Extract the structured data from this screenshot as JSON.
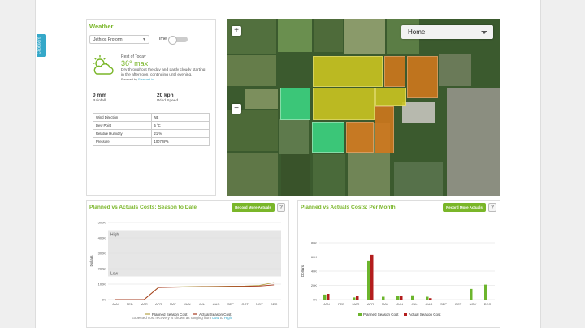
{
  "sidebar_tab": {
    "label": "Clipboard"
  },
  "weather": {
    "title": "Weather",
    "location_select": "Jethros Proform",
    "time_label": "Time",
    "period": "Rest of Today",
    "temperature": "36° max",
    "description_line1": "Dry throughout the day and partly cloudy starting",
    "description_line2": "in the afternoon, continuing until evening.",
    "powered_by_prefix": "Powered by",
    "powered_by_brand": "Forecast.io",
    "rainfall_value": "0 mm",
    "rainfall_label": "Rainfall",
    "wind_speed_value": "20 kph",
    "wind_speed_label": "Wind Speed",
    "details": [
      {
        "label": "Wind Direction",
        "value": "NE"
      },
      {
        "label": "Dew Point",
        "value": "5 °C"
      },
      {
        "label": "Relative Humidity",
        "value": "21 %"
      },
      {
        "label": "Pressure",
        "value": "1007 hPa"
      }
    ]
  },
  "map": {
    "zoom_in": "+",
    "zoom_out": "−",
    "dropdown": "Home",
    "colors": {
      "yellow": "#c9c421",
      "orange": "#d2781c",
      "green": "#3bd07f"
    }
  },
  "season_chart": {
    "title": "Planned vs Actuals Costs: Season to Date",
    "record_button": "Record More Actuals",
    "help_button": "?",
    "note_parts": [
      "Expected cost recovery is shown as ranging from ",
      "Low",
      " to ",
      "High",
      "."
    ],
    "chart_data": {
      "type": "line",
      "ylabel": "Dollars",
      "categories": [
        "JAN",
        "FEB",
        "MAR",
        "APR",
        "MAY",
        "JUN",
        "JUL",
        "AUG",
        "SEP",
        "OCT",
        "NOV",
        "DEC"
      ],
      "y_ticks": [
        "500K",
        "400K",
        "300K",
        "200K",
        "100K",
        "0K"
      ],
      "ylim": [
        0,
        500000
      ],
      "band": {
        "high_label": "High",
        "low_label": "Low",
        "high": 450000,
        "low": 150000
      },
      "series": [
        {
          "name": "Planned Season Cost",
          "color": "#b5a34a",
          "values": [
            0,
            0,
            0,
            80000,
            82000,
            84000,
            85000,
            86000,
            87000,
            88000,
            92000,
            110000
          ]
        },
        {
          "name": "Actual Season Cost",
          "color": "#a6391d",
          "values": [
            0,
            0,
            0,
            78000,
            80000,
            82000,
            83000,
            84000,
            85000,
            86000,
            88000,
            95000
          ]
        }
      ],
      "legend_position": "bottom"
    }
  },
  "monthly_chart": {
    "title": "Planned vs Actuals Costs: Per Month",
    "record_button": "Record More Actuals",
    "help_button": "?",
    "chart_data": {
      "type": "bar",
      "ylabel": "Dollars",
      "categories": [
        "JAN",
        "FEB",
        "MAR",
        "APR",
        "MAY",
        "JUN",
        "JUL",
        "AUG",
        "SEP",
        "OCT",
        "NOV",
        "DEC"
      ],
      "y_ticks": [
        "80K",
        "60K",
        "40K",
        "20K",
        "0K"
      ],
      "ylim": [
        0,
        80000
      ],
      "series": [
        {
          "name": "Planned Season Cost",
          "color": "#6cb52d",
          "values": [
            7000,
            0,
            3000,
            55000,
            4000,
            5000,
            6000,
            4000,
            0,
            0,
            15000,
            21000
          ]
        },
        {
          "name": "Actual Season Cost",
          "color": "#b31d1d",
          "values": [
            8000,
            0,
            5000,
            63000,
            0,
            5000,
            0,
            2000,
            0,
            0,
            0,
            0
          ]
        }
      ],
      "legend_position": "bottom"
    }
  }
}
